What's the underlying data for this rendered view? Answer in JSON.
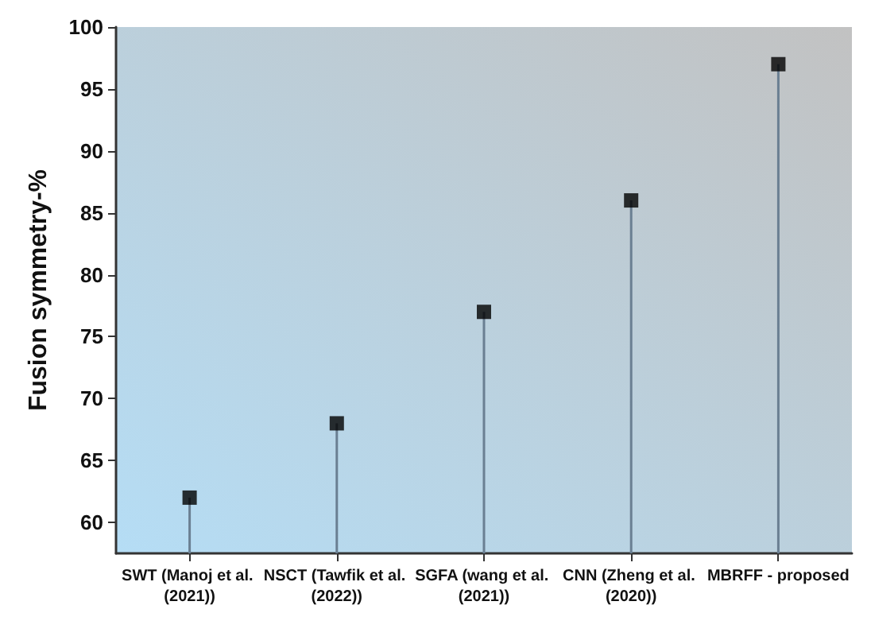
{
  "chart_data": {
    "type": "lollipop",
    "ylabel": "Fusion symmetry-%",
    "categories": [
      "SWT (Manoj et al. (2021))",
      "NSCT (Tawfik et al. (2022))",
      "SGFA (wang et al. (2021))",
      "CNN (Zheng et al. (2020))",
      "MBRFF - proposed"
    ],
    "values": [
      62,
      68,
      77,
      86,
      97
    ],
    "color": "#000000",
    "ylim": [
      57.5,
      100
    ],
    "yticks": [
      60,
      65,
      70,
      75,
      80,
      85,
      90,
      95,
      100
    ],
    "grid": false,
    "marker": "square"
  }
}
